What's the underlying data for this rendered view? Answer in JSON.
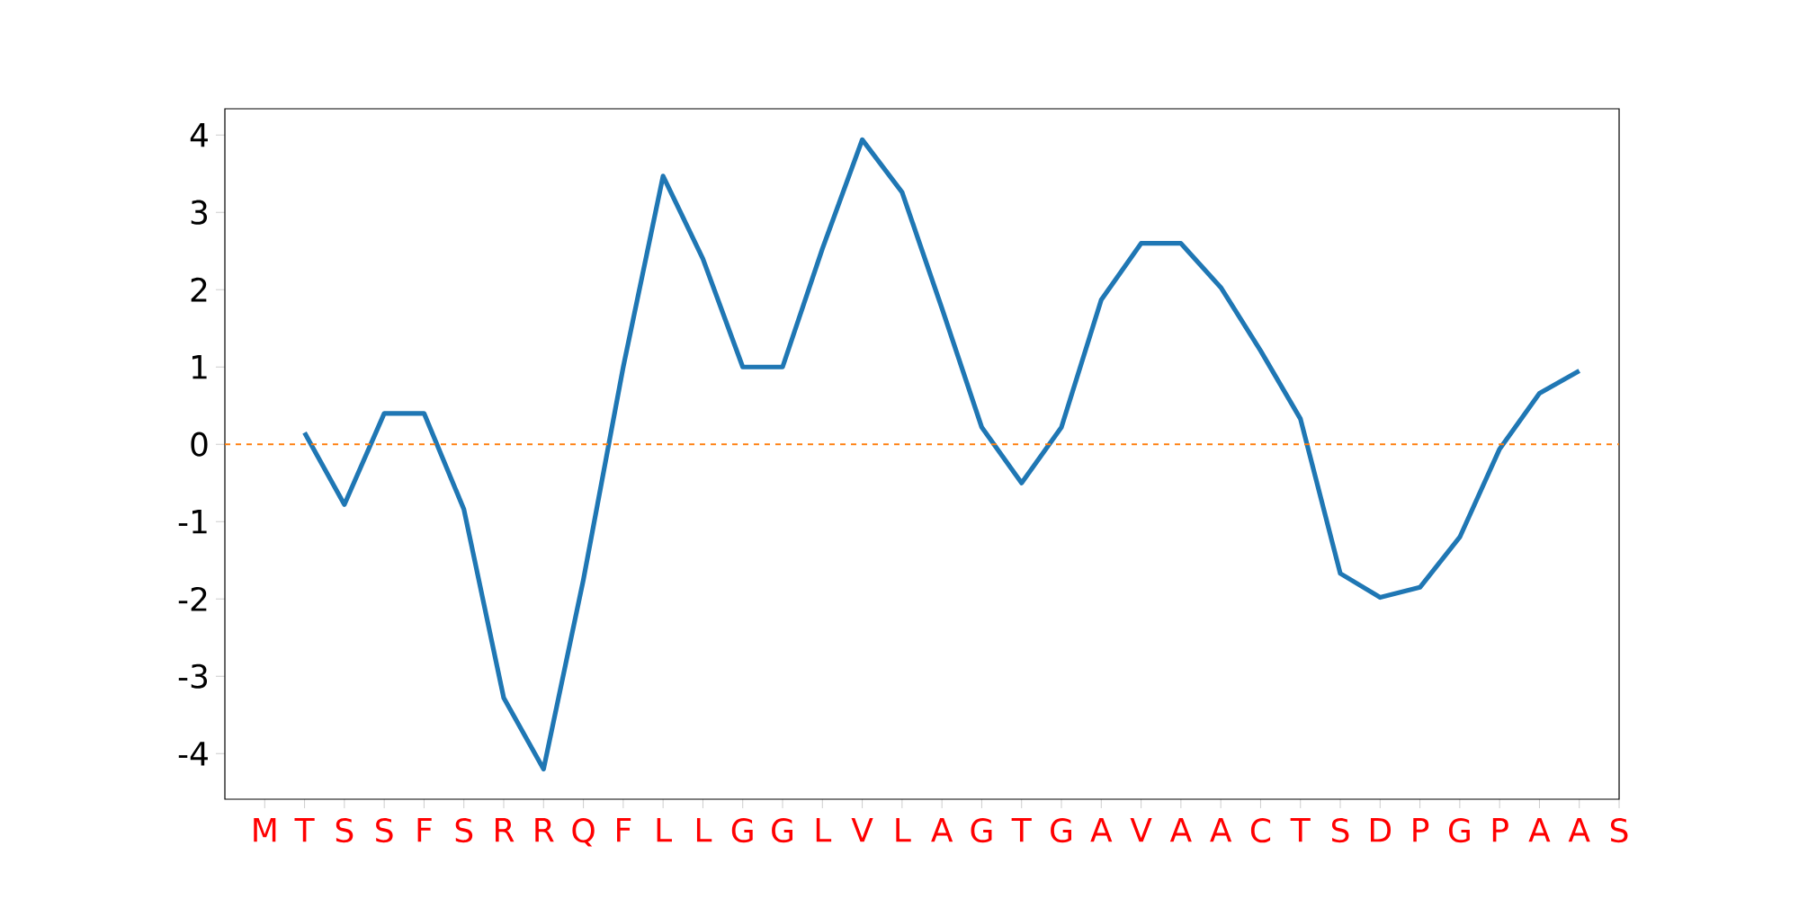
{
  "chart_data": {
    "type": "line",
    "categories": [
      "M",
      "T",
      "S",
      "S",
      "F",
      "S",
      "R",
      "R",
      "Q",
      "F",
      "L",
      "L",
      "G",
      "G",
      "L",
      "V",
      "L",
      "A",
      "G",
      "T",
      "G",
      "A",
      "V",
      "A",
      "A",
      "C",
      "T",
      "S",
      "D",
      "P",
      "G",
      "P",
      "A",
      "A",
      "S"
    ],
    "series": [
      {
        "color": "#1f77b4",
        "values": [
          null,
          0.15,
          -0.78,
          0.4,
          0.4,
          -0.84,
          -3.28,
          -4.2,
          -1.75,
          1.0,
          3.47,
          2.4,
          1.0,
          1.0,
          2.53,
          3.94,
          3.26,
          1.76,
          0.22,
          -0.5,
          0.22,
          1.87,
          2.6,
          2.6,
          2.03,
          1.21,
          0.33,
          -1.67,
          -1.98,
          -1.85,
          -1.2,
          -0.06,
          0.66,
          0.95,
          null
        ]
      }
    ],
    "ylim": [
      -4.59,
      4.34
    ],
    "yticks": [
      -4,
      -3,
      -2,
      -1,
      0,
      1,
      2,
      3,
      4
    ],
    "ref_lines": [
      {
        "axis": "y",
        "value": 0,
        "color": "#ff7f0e",
        "line_style": "dashed"
      }
    ],
    "grid": false,
    "marker": "none",
    "line_style": "solid"
  }
}
